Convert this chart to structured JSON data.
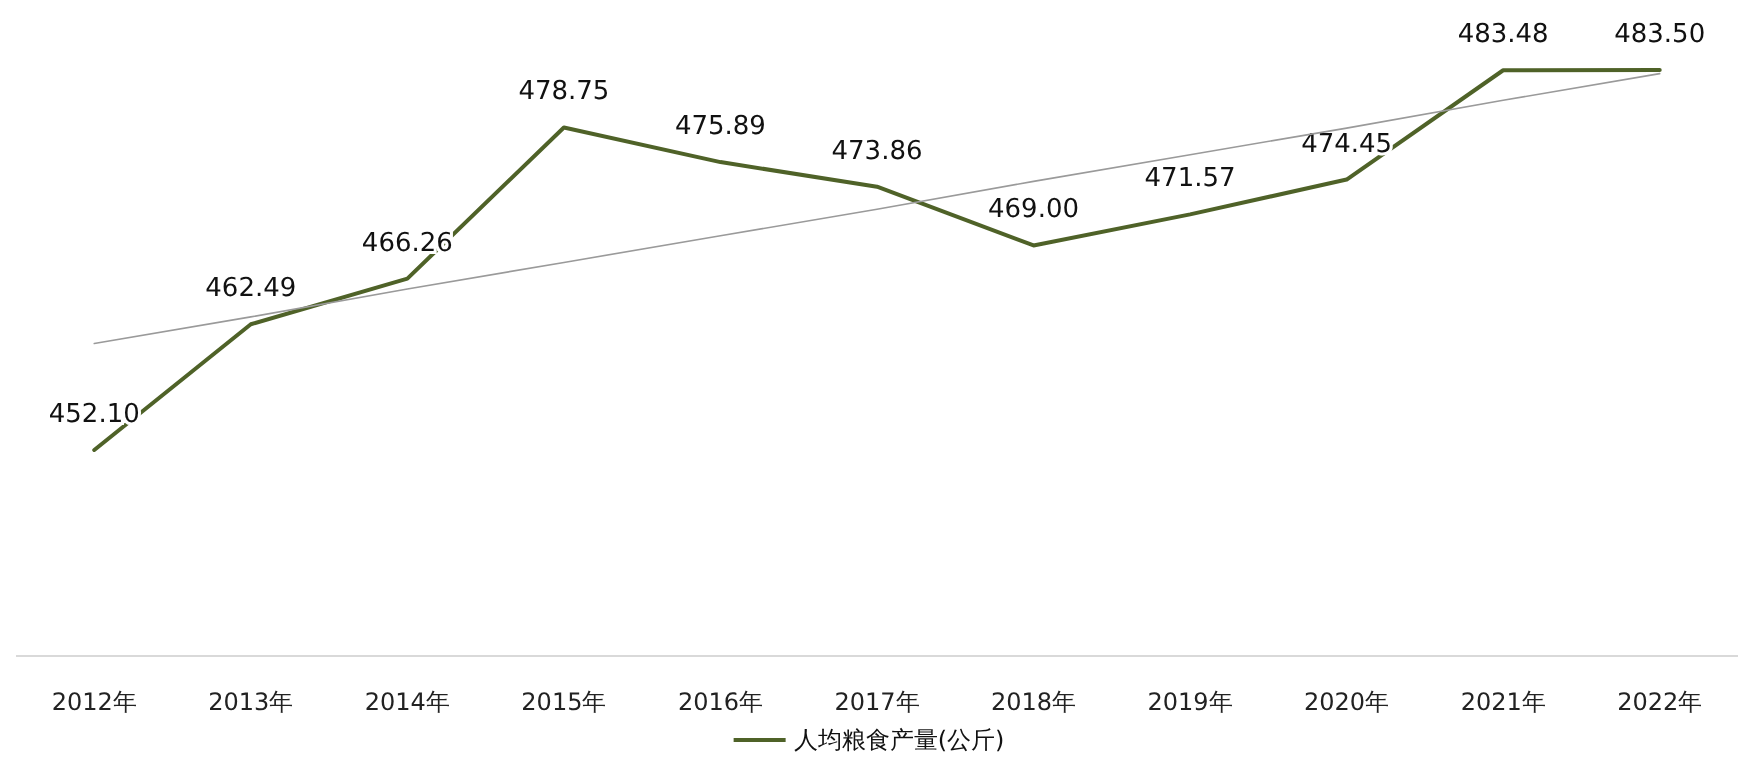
{
  "chart_data": {
    "type": "line",
    "categories": [
      "2012年",
      "2013年",
      "2014年",
      "2015年",
      "2016年",
      "2017年",
      "2018年",
      "2019年",
      "2020年",
      "2021年",
      "2022年"
    ],
    "series": [
      {
        "name": "人均粮食产量(公斤)",
        "color": "#4f6228",
        "values": [
          452.1,
          462.49,
          466.26,
          478.75,
          475.89,
          473.86,
          469.0,
          471.57,
          474.45,
          483.48,
          483.5
        ],
        "value_labels": [
          "452.10",
          "462.49",
          "466.26",
          "478.75",
          "475.89",
          "473.86",
          "469.00",
          "471.57",
          "474.45",
          "483.48",
          "483.50"
        ]
      },
      {
        "color": "#9a9a9a",
        "line_style": "solid",
        "values": [
          460.9,
          463.1,
          465.4,
          467.6,
          469.8,
          472.0,
          474.3,
          476.5,
          478.7,
          481.0,
          483.2
        ]
      }
    ],
    "legend": "bottom",
    "grid": false,
    "marker": "none"
  }
}
